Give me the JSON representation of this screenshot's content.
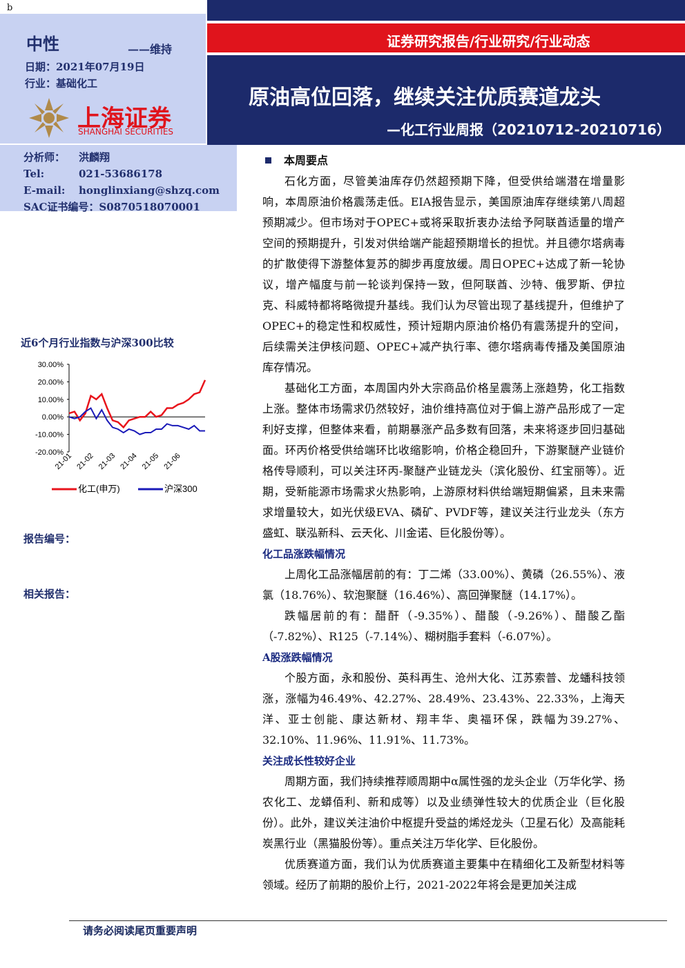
{
  "corner_mark": "b",
  "header": {
    "report_type": "证券研究报告/行业研究/行业动态",
    "title": "原油高位回落，继续关注优质赛道龙头",
    "subtitle": "—化工行业周报（20210712-20210716）"
  },
  "sidebar": {
    "rating": "中性",
    "rating_change": "——维持",
    "date": "日期：2021年07月19日",
    "industry": "行业：基础化工",
    "logo_cn": "上海证券",
    "logo_en": "SHANGHAI SECURITIES",
    "analyst": [
      [
        "分析师：",
        "洪麟翔"
      ],
      [
        "Tel:",
        "021-53686178"
      ],
      [
        "E-mail:",
        "honglinxiang@shzq.com"
      ],
      [
        "SAC证书编号：",
        "S0870518070001"
      ]
    ],
    "report_no": "报告编号：",
    "related": "相关报告："
  },
  "chart_data": {
    "type": "line",
    "title": "近6个月行业指数与沪深300比较",
    "categories": [
      "21-01",
      null,
      null,
      null,
      "21-02",
      null,
      null,
      null,
      "21-03",
      null,
      null,
      null,
      "21-04",
      null,
      null,
      null,
      "21-05",
      null,
      null,
      null,
      "21-06",
      null,
      null,
      null,
      null,
      null
    ],
    "series": [
      {
        "name": "化工(申万)",
        "color": "#e8141c",
        "values": [
          2,
          3,
          -2,
          2,
          12,
          10,
          13,
          5,
          -2,
          -3,
          -6,
          -2,
          -1,
          0,
          0,
          3,
          0,
          1,
          5,
          5,
          7,
          8,
          10,
          13,
          14,
          21
        ]
      },
      {
        "name": "沪深300",
        "color": "#1a1ab8",
        "values": [
          0,
          -1,
          0,
          3,
          5,
          -1,
          4,
          -2,
          -6,
          -7,
          -9,
          -7,
          -8,
          -10,
          -9,
          -9,
          -7,
          -7,
          -4,
          -5,
          -5,
          -6,
          -7,
          -5,
          -8,
          -8
        ]
      }
    ],
    "ylim": [
      -20,
      30
    ],
    "yticks": [
      {
        "value": -20,
        "label": "-20.00%"
      },
      {
        "value": -10,
        "label": "-10.00%"
      },
      {
        "value": 0,
        "label": "0.00%"
      },
      {
        "value": 10,
        "label": "10.00%"
      },
      {
        "value": 20,
        "label": "20.00%"
      },
      {
        "value": 30,
        "label": "30.00%"
      }
    ]
  },
  "body": {
    "heading": "本周要点",
    "p1": "石化方面，尽管美油库存仍然超预期下降，但受供给端潜在增量影响，本周原油价格震荡走低。EIA报告显示，美国原油库存继续第八周超预期减少。但市场对于OPEC+或将采取折衷办法给予阿联酋适量的增产空间的预期提升，引发对供给端产能超预期增长的担忧。并且德尔塔病毒的扩散使得下游整体复苏的脚步再度放缓。周日OPEC+达成了新一轮协议，增产幅度与前一轮谈判保持一致，但阿联酋、沙特、俄罗斯、伊拉克、科威特都将略微提升基线。我们认为尽管出现了基线提升，但维护了OPEC+的稳定性和权威性，预计短期内原油价格仍有震荡提升的空间，后续需关注伊核问题、OPEC+减产执行率、德尔塔病毒传播及美国原油库存情况。",
    "p2": "基础化工方面，本周国内外大宗商品价格呈震荡上涨趋势，化工指数上涨。整体市场需求仍然较好，油价维持高位对于偏上游产品形成了一定利好支撑，但整体来看，前期暴涨产品多数有回落，未来将逐步回归基础面。环丙价格受供给端环比收缩影响，价格企稳回升，下游聚醚产业链价格传导顺利，可以关注环丙-聚醚产业链龙头（滨化股份、红宝丽等）。近期，受新能源市场需求火热影响，上游原材料供给端短期偏紧，且未来需求增量较大，如光伏级EVA、磷矿、PVDF等，建议关注行业龙头（东方盛虹、联泓新科、云天化、川金诺、巨化股份等）。",
    "h2": "化工品涨跌幅情况",
    "p3": "上周化工品涨幅居前的有：丁二烯（33.00%）、黄磷（26.55%）、液氯（18.76%）、软泡聚醚（16.46%）、高回弹聚醚（14.17%）。",
    "p4": "跌幅居前的有：醋酐（-9.35%）、醋酸（-9.26%）、醋酸乙酯（-7.82%）、R125（-7.14%）、糊树脂手套料（-6.07%）。",
    "h3": "A股涨跌幅情况",
    "p5": "个股方面，永和股份、英科再生、沧州大化、江苏索普、龙蟠科技领涨，涨幅为46.49%、42.27%、28.49%、23.43%、22.33%，上海天洋、亚士创能、康达新材、翔丰华、奥福环保，跌幅为39.27%、32.10%、11.96%、11.91%、11.73%。",
    "h4": "关注成长性较好企业",
    "p6": "周期方面，我们持续推荐顺周期中α属性强的龙头企业（万华化学、扬农化工、龙蟒佰利、新和成等）以及业绩弹性较大的优质企业（巨化股份）。此外，建议关注油价中枢提升受益的烯烃龙头（卫星石化）及高能耗炭黑行业（黑猫股份等）。重点关注万华化学、巨化股份。",
    "p7": "优质赛道方面，我们认为优质赛道主要集中在精细化工及新型材料等领域。经历了前期的股价上行，2021-2022年将会是更加关注成"
  },
  "footer": "请务必阅读尾页重要声明"
}
